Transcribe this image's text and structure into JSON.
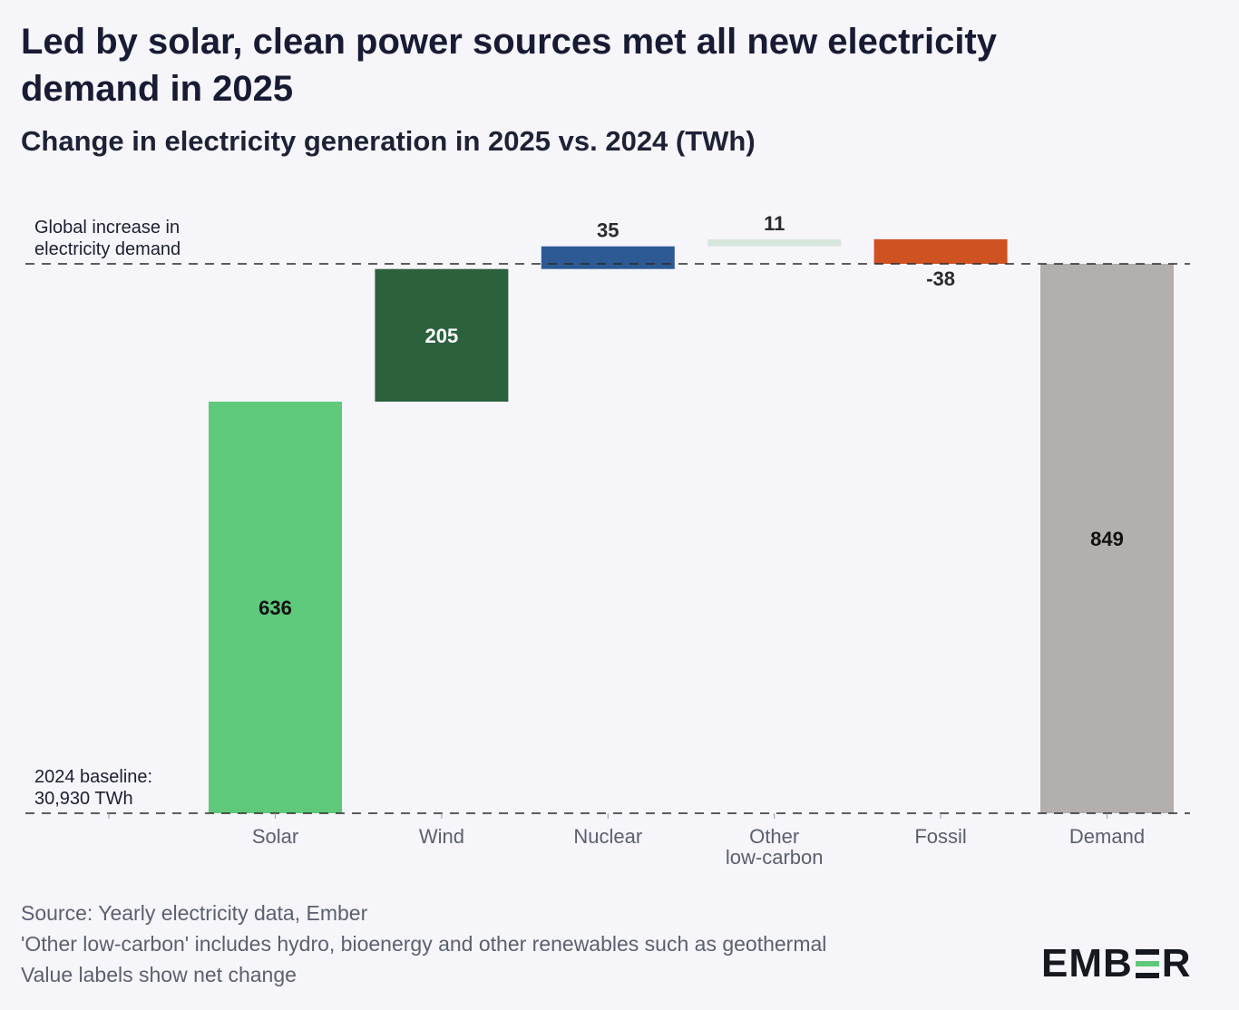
{
  "title": "Led by solar, clean power sources met all new electricity demand in 2025",
  "subtitle": "Change in electricity generation in 2025 vs. 2024 (TWh)",
  "annotations": {
    "demand_line_line1": "Global increase in",
    "demand_line_line2": "electricity demand",
    "baseline_line1": "2024 baseline:",
    "baseline_line2": "30,930 TWh"
  },
  "footer": {
    "source": "Source: Yearly electricity data, Ember",
    "note1": "'Other low-carbon' includes hydro, bioenergy and other renewables such as geothermal",
    "note2": "Value labels show net change"
  },
  "logo": {
    "left": "EMB",
    "right": "R",
    "accent_color": "#5ec97b"
  },
  "chart_data": {
    "type": "bar",
    "subtype": "waterfall",
    "categories": [
      "Solar",
      "Wind",
      "Nuclear",
      "Other low-carbon",
      "Fossil",
      "Demand"
    ],
    "category_label_lines": [
      [
        "Solar"
      ],
      [
        "Wind"
      ],
      [
        "Nuclear"
      ],
      [
        "Other",
        "low-carbon"
      ],
      [
        "Fossil"
      ],
      [
        "Demand"
      ]
    ],
    "values": [
      636,
      205,
      35,
      11,
      -38,
      849
    ],
    "value_labels": [
      "636",
      "205",
      "35",
      "11",
      "-38",
      "849"
    ],
    "bar_kind": [
      "delta",
      "delta",
      "delta",
      "delta",
      "delta",
      "total"
    ],
    "colors": [
      "#5ec97b",
      "#2b613c",
      "#2d5a94",
      "#d7e6dd",
      "#cf5223",
      "#b3afad"
    ],
    "baseline_value": 0,
    "reference_line_value": 849,
    "ylim": [
      0,
      900
    ],
    "grid": false,
    "legend": "none"
  }
}
